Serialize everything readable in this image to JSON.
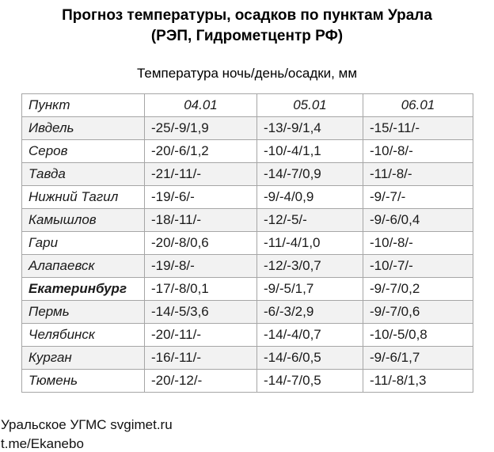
{
  "title": {
    "line1": "Прогноз температуры, осадков по пунктам Урала",
    "line2": "(РЭП, Гидрометцентр РФ)"
  },
  "subtitle": "Температура ночь/день/осадки, мм",
  "table": {
    "columns": [
      "Пункт",
      "04.01",
      "05.01",
      "06.01"
    ],
    "rows": [
      {
        "city": "Ивдель",
        "bold": false,
        "values": [
          "-25/-9/1,9",
          "-13/-9/1,4",
          "-15/-11/-"
        ]
      },
      {
        "city": "Серов",
        "bold": false,
        "values": [
          "-20/-6/1,2",
          "-10/-4/1,1",
          "-10/-8/-"
        ]
      },
      {
        "city": "Тавда",
        "bold": false,
        "values": [
          "-21/-11/-",
          "-14/-7/0,9",
          "-11/-8/-"
        ]
      },
      {
        "city": "Нижний Тагил",
        "bold": false,
        "values": [
          "-19/-6/-",
          "-9/-4/0,9",
          "-9/-7/-"
        ]
      },
      {
        "city": "Камышлов",
        "bold": false,
        "values": [
          "-18/-11/-",
          "-12/-5/-",
          "-9/-6/0,4"
        ]
      },
      {
        "city": "Гари",
        "bold": false,
        "values": [
          "-20/-8/0,6",
          "-11/-4/1,0",
          "-10/-8/-"
        ]
      },
      {
        "city": "Алапаевск",
        "bold": false,
        "values": [
          "-19/-8/-",
          "-12/-3/0,7",
          "-10/-7/-"
        ]
      },
      {
        "city": "Екатеринбург",
        "bold": true,
        "values": [
          "-17/-8/0,1",
          "-9/-5/1,7",
          "-9/-7/0,2"
        ]
      },
      {
        "city": "Пермь",
        "bold": false,
        "values": [
          "-14/-5/3,6",
          "-6/-3/2,9",
          "-9/-7/0,6"
        ]
      },
      {
        "city": "Челябинск",
        "bold": false,
        "values": [
          "-20/-11/-",
          "-14/-4/0,7",
          "-10/-5/0,8"
        ]
      },
      {
        "city": "Курган",
        "bold": false,
        "values": [
          "-16/-11/-",
          "-14/-6/0,5",
          "-9/-6/1,7"
        ]
      },
      {
        "city": "Тюмень",
        "bold": false,
        "values": [
          "-20/-12/-",
          "-14/-7/0,5",
          "-11/-8/1,3"
        ]
      }
    ]
  },
  "footer": {
    "line1": "Уральское УГМС svgimet.ru",
    "line2": "t.me/Ekanebo"
  },
  "colors": {
    "stripe": "#f2f2f2",
    "border": "#a6a6a6",
    "text": "#1a1a1a"
  }
}
